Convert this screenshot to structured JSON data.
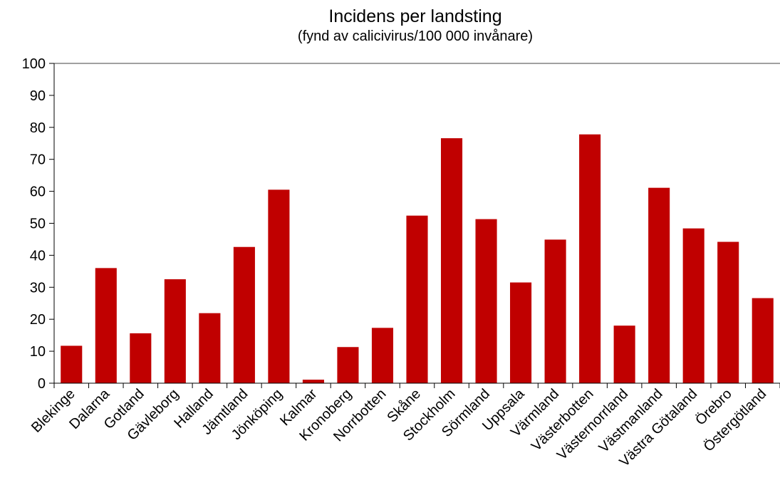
{
  "chart_data": {
    "type": "bar",
    "title": "Incidens per landsting",
    "subtitle": "(fynd av calicivirus/100 000 invånare)",
    "xlabel": "",
    "ylabel": "",
    "ylim": [
      0,
      100
    ],
    "ytick_step": 10,
    "grid": false,
    "legend": "none",
    "bar_color": "#c00000",
    "categories": [
      "Blekinge",
      "Dalarna",
      "Gotland",
      "Gävleborg",
      "Halland",
      "Jämtland",
      "Jönköping",
      "Kalmar",
      "Kronoberg",
      "Norrbotten",
      "Skåne",
      "Stockholm",
      "Sörmland",
      "Uppsala",
      "Värmland",
      "Västerbotten",
      "Västernorrland",
      "Västmanland",
      "Västra Götaland",
      "Örebro",
      "Östergötland"
    ],
    "values": [
      11.7,
      36.0,
      15.6,
      32.5,
      21.9,
      42.6,
      60.5,
      1.1,
      11.3,
      17.3,
      52.4,
      76.6,
      51.3,
      31.5,
      44.9,
      77.8,
      18.0,
      61.1,
      48.4,
      44.2,
      26.6
    ]
  }
}
